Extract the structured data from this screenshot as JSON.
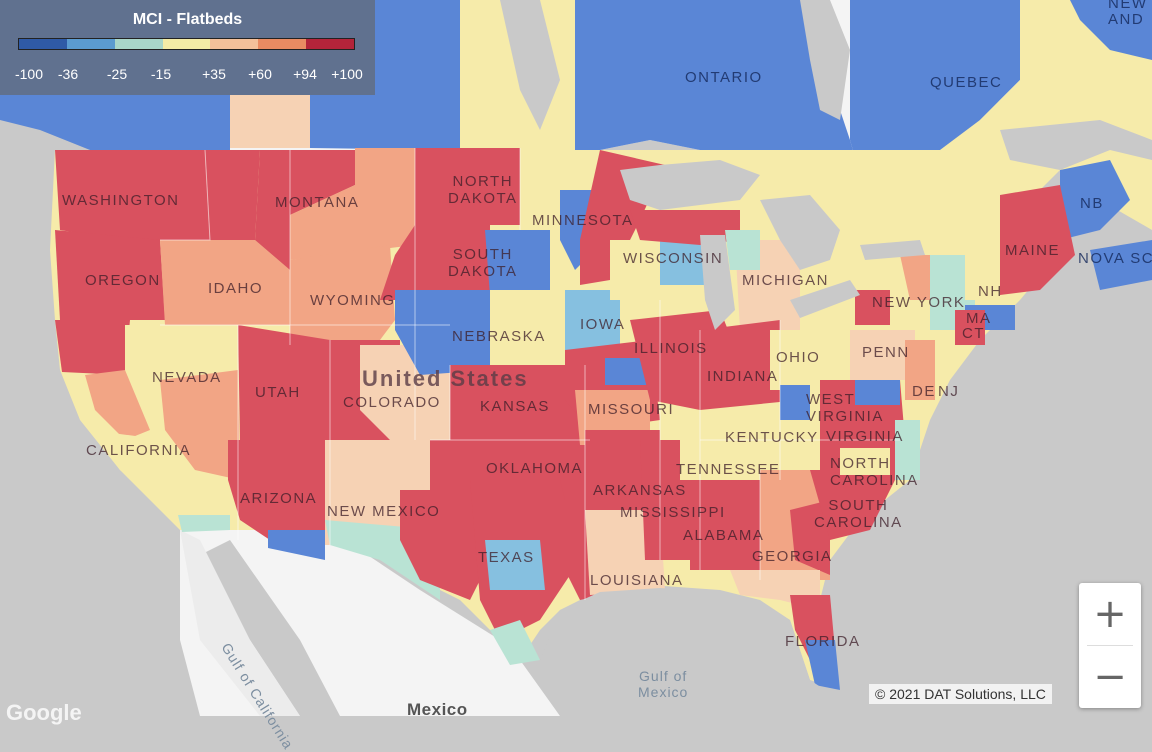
{
  "legend": {
    "title": "MCI - Flatbeds",
    "colors": [
      "#2f5aa6",
      "#5b9bd0",
      "#a9d6c9",
      "#f3eba6",
      "#f3c09a",
      "#e98b62",
      "#b3243a"
    ],
    "ticks": [
      "-100",
      "-36",
      "-25",
      "-15",
      "+35",
      "+60",
      "+94",
      "+100"
    ]
  },
  "map_colors": {
    "red": "#d9515f",
    "salmon": "#f2a585",
    "peach": "#f6d2b4",
    "yellow": "#f6ebaa",
    "mint": "#b9e3d4",
    "lightblue": "#86c0e0",
    "blue": "#5a86d6",
    "land": "#f4f4f4",
    "water": "#c9c9c9"
  },
  "labels": {
    "country_us": "United States",
    "country_mexico": "Mexico",
    "gulf_mexico": "Gulf of\nMexico",
    "gulf_california": "Gulf of California",
    "ontario": "ONTARIO",
    "quebec": "QUEBEC",
    "new_and": "NEW\nAND",
    "nb": "NB",
    "nova_scotia": "NOVA SC",
    "washington": "WASHINGTON",
    "oregon": "OREGON",
    "california": "CALIFORNIA",
    "nevada": "NEVADA",
    "idaho": "IDAHO",
    "montana": "MONTANA",
    "wyoming": "WYOMING",
    "utah": "UTAH",
    "arizona": "ARIZONA",
    "colorado": "COLORADO",
    "new_mexico": "NEW MEXICO",
    "north_dakota": "NORTH\nDAKOTA",
    "south_dakota": "SOUTH\nDAKOTA",
    "nebraska": "NEBRASKA",
    "kansas": "KANSAS",
    "oklahoma": "OKLAHOMA",
    "texas": "TEXAS",
    "minnesota": "MINNESOTA",
    "iowa": "IOWA",
    "missouri": "MISSOURI",
    "arkansas": "ARKANSAS",
    "louisiana": "LOUISIANA",
    "wisconsin": "WISCONSIN",
    "illinois": "ILLINOIS",
    "michigan": "MICHIGAN",
    "indiana": "INDIANA",
    "ohio": "OHIO",
    "kentucky": "KENTUCKY",
    "tennessee": "TENNESSEE",
    "mississippi": "MISSISSIPPI",
    "alabama": "ALABAMA",
    "georgia": "GEORGIA",
    "florida": "FLORIDA",
    "south_carolina": "SOUTH\nCAROLINA",
    "north_carolina": "NORTH\nCAROLINA",
    "virginia": "VIRGINIA",
    "west_virginia": "WEST\nVIRGINIA",
    "pennsylvania": "PENN",
    "new_york": "NEW YORK",
    "maine": "MAINE",
    "ma": "MA",
    "ct": "CT",
    "nh": "NH",
    "nj": "NJ",
    "de": "DE"
  },
  "zoom": {
    "in_label": "+",
    "out_label": "−"
  },
  "copyright": "© 2021 DAT Solutions, LLC",
  "google": "Google"
}
